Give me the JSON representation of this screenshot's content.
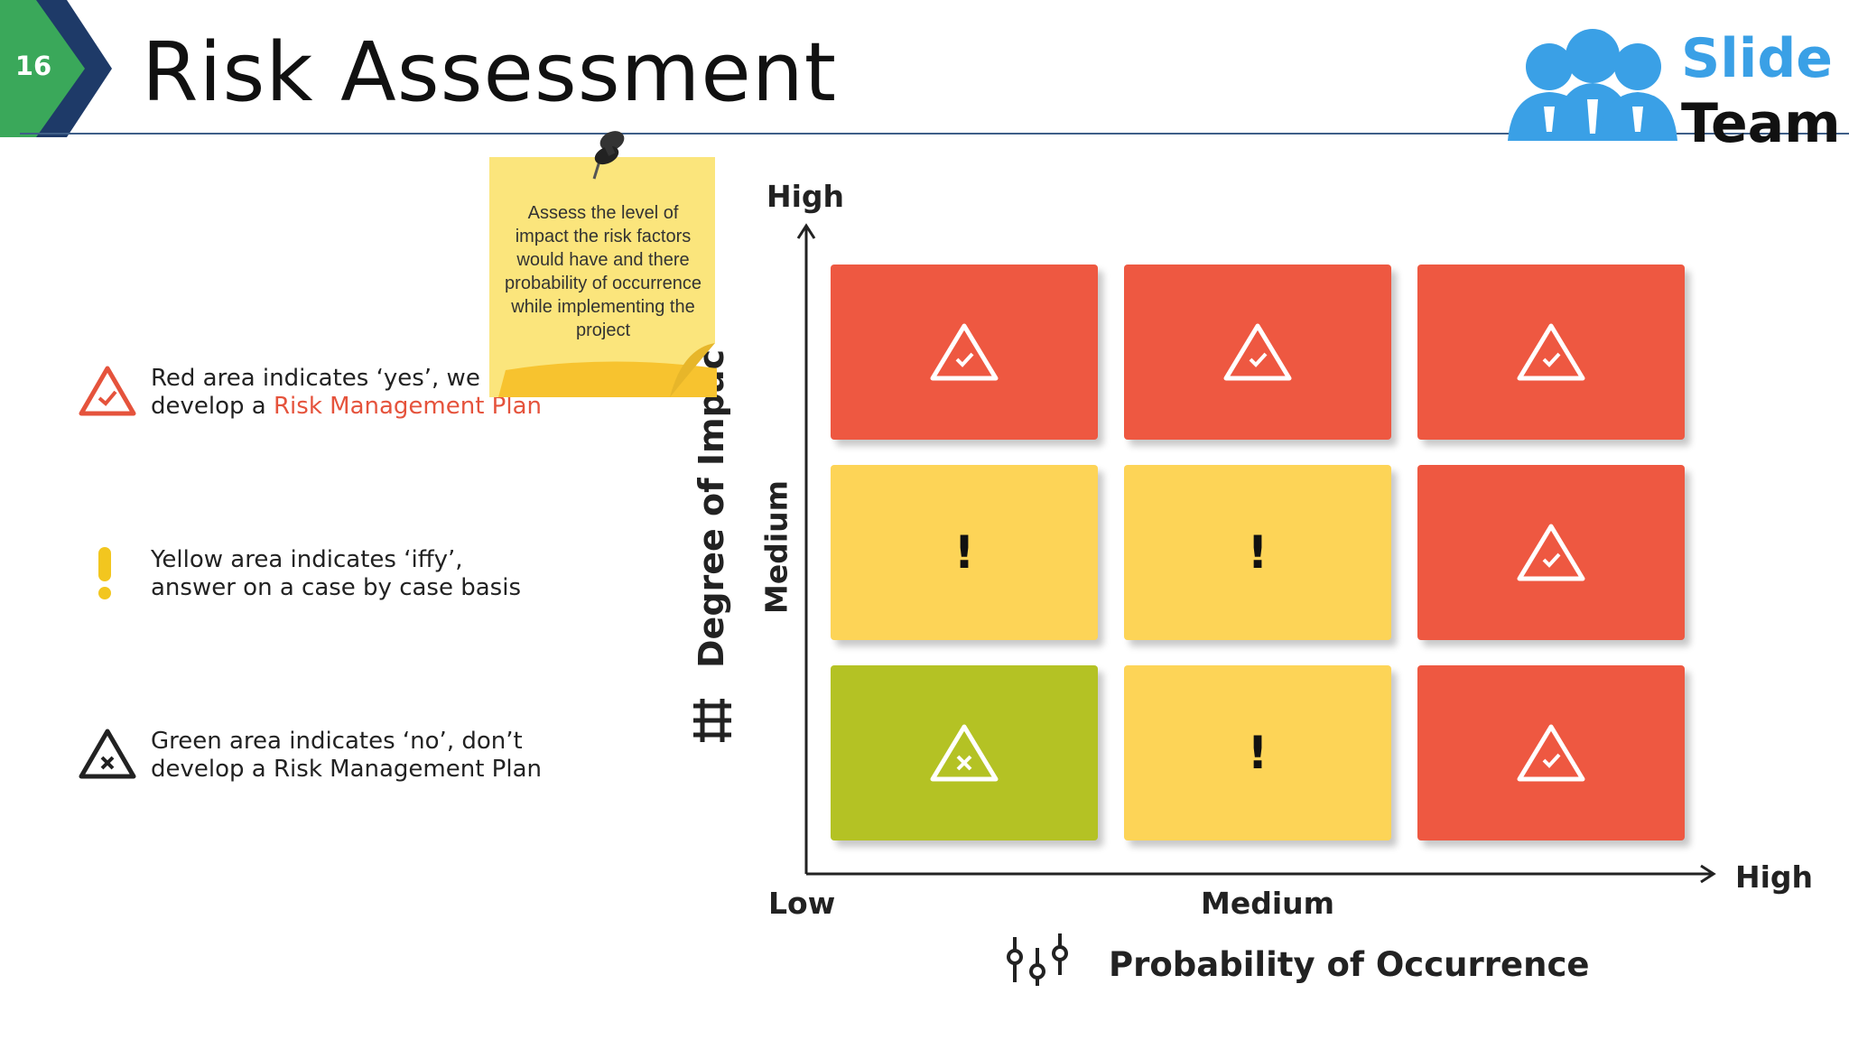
{
  "header": {
    "slide_number": "16",
    "title": "Risk Assessment",
    "brand": {
      "line1": "Slide",
      "line2": "Team"
    }
  },
  "legend": [
    {
      "icon": "warning-check-icon",
      "color": "#e5533c",
      "line1": "Red area indicates ‘yes’, we r",
      "line2_prefix": "develop a ",
      "line2_highlight": "Risk Management Plan"
    },
    {
      "icon": "exclamation-icon",
      "color": "#f2c61f",
      "line1": "Yellow area indicates ‘iffy’,",
      "line2": "answer on a case by case basis"
    },
    {
      "icon": "warning-x-icon",
      "color": "#222222",
      "line1": "Green area indicates ‘no’, don’t",
      "line2": "develop a Risk Management Plan"
    }
  ],
  "sticky_note": {
    "text": "Assess the level of impact the risk factors would have and there probability of occurrence while implementing the project"
  },
  "matrix": {
    "rows": [
      [
        {
          "color": "red",
          "icon": "warning-check-icon"
        },
        {
          "color": "red",
          "icon": "warning-check-icon"
        },
        {
          "color": "red",
          "icon": "warning-check-icon"
        }
      ],
      [
        {
          "color": "yellow",
          "icon": "exclamation-icon",
          "mark": "!"
        },
        {
          "color": "yellow",
          "icon": "exclamation-icon",
          "mark": "!"
        },
        {
          "color": "red",
          "icon": "warning-check-icon"
        }
      ],
      [
        {
          "color": "green",
          "icon": "warning-x-icon"
        },
        {
          "color": "yellow",
          "icon": "exclamation-icon",
          "mark": "!"
        },
        {
          "color": "red",
          "icon": "warning-check-icon"
        }
      ]
    ],
    "colors": {
      "red": "#ee5841",
      "yellow": "#fdd457",
      "green": "#b4c224"
    }
  },
  "axes": {
    "y_title": "Degree of Impac",
    "y_high": "High",
    "y_medium": "Medium",
    "x_low": "Low",
    "x_medium": "Medium",
    "x_high": "High",
    "x_title": "Probability of Occurrence"
  }
}
